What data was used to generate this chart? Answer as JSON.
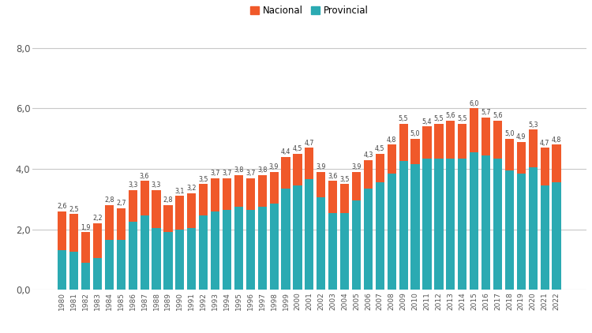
{
  "years": [
    1980,
    1981,
    1982,
    1983,
    1984,
    1985,
    1986,
    1987,
    1988,
    1989,
    1990,
    1991,
    1992,
    1993,
    1994,
    1995,
    1996,
    1997,
    1998,
    1999,
    2000,
    2001,
    2002,
    2003,
    2004,
    2005,
    2006,
    2007,
    2008,
    2009,
    2010,
    2011,
    2012,
    2013,
    2014,
    2015,
    2016,
    2017,
    2018,
    2019,
    2020,
    2021,
    2022
  ],
  "totals": [
    2.6,
    2.5,
    1.9,
    2.2,
    2.8,
    2.7,
    3.3,
    3.6,
    3.3,
    2.8,
    3.1,
    3.2,
    3.5,
    3.7,
    3.7,
    3.8,
    3.7,
    3.8,
    3.9,
    4.4,
    4.5,
    4.7,
    3.9,
    3.6,
    3.5,
    3.9,
    4.3,
    4.5,
    4.8,
    5.5,
    5.0,
    5.4,
    5.5,
    5.6,
    5.5,
    6.0,
    5.7,
    5.6,
    5.0,
    4.9,
    5.3,
    4.7,
    4.8
  ],
  "provincial": [
    1.3,
    1.25,
    0.9,
    1.05,
    1.65,
    1.65,
    2.25,
    2.45,
    2.05,
    1.9,
    2.0,
    2.05,
    2.45,
    2.6,
    2.65,
    2.75,
    2.65,
    2.75,
    2.85,
    3.35,
    3.45,
    3.65,
    3.05,
    2.55,
    2.55,
    2.95,
    3.35,
    3.55,
    3.85,
    4.25,
    4.15,
    4.35,
    4.35,
    4.35,
    4.35,
    4.55,
    4.45,
    4.35,
    3.95,
    3.85,
    4.05,
    3.45,
    3.55
  ],
  "color_provincial": "#2baab2",
  "color_nacional": "#f0592a",
  "background_color": "#ffffff",
  "grid_color": "#c8c8c8",
  "legend_nacional": "Nacional",
  "legend_provincial": "Provincial",
  "ylim": [
    0,
    8.6
  ],
  "yticks": [
    0.0,
    2.0,
    4.0,
    6.0,
    8.0
  ],
  "ytick_labels": [
    "0,0",
    "2,0",
    "4,0",
    "6,0",
    "8,0"
  ],
  "label_fontsize": 5.8,
  "bar_width": 0.75
}
